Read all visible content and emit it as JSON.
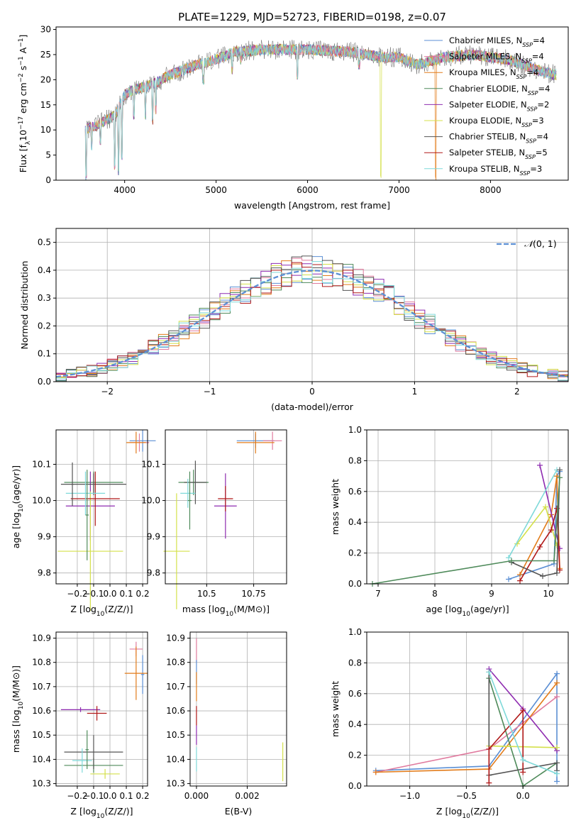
{
  "figure_title": "PLATE=1229, MJD=52723, FIBERID=0198, z=0.07",
  "models": [
    {
      "name": "Chabrier MILES, N_SSP=4",
      "label_main": "Chabrier MILES, N",
      "label_sub": "SSP",
      "label_end": "=4",
      "color": "#5b8fd4"
    },
    {
      "name": "Salpeter MILES, N_SSP=4",
      "label_main": "Salpeter MILES, N",
      "label_sub": "SSP",
      "label_end": "=4",
      "color": "#e07b9f"
    },
    {
      "name": "Kroupa MILES, N_SSP=4",
      "label_main": "Kroupa MILES, N",
      "label_sub": "SSP",
      "label_end": "=4",
      "color": "#e27c1b"
    },
    {
      "name": "Chabrier ELODIE, N_SSP=4",
      "label_main": "Chabrier ELODIE, N",
      "label_sub": "SSP",
      "label_end": "=4",
      "color": "#4e8a5a"
    },
    {
      "name": "Salpeter ELODIE, N_SSP=2",
      "label_main": "Salpeter ELODIE, N",
      "label_sub": "SSP",
      "label_end": "=2",
      "color": "#8e2bb0"
    },
    {
      "name": "Kroupa ELODIE, N_SSP=3",
      "label_main": "Kroupa ELODIE, N",
      "label_sub": "SSP",
      "label_end": "=3",
      "color": "#d4e04a"
    },
    {
      "name": "Chabrier STELIB, N_SSP=4",
      "label_main": "Chabrier STELIB, N",
      "label_sub": "SSP",
      "label_end": "=4",
      "color": "#555555"
    },
    {
      "name": "Salpeter STELIB, N_SSP=5",
      "label_main": "Salpeter STELIB, N",
      "label_sub": "SSP",
      "label_end": "=5",
      "color": "#b01818"
    },
    {
      "name": "Kroupa STELIB, N_SSP=3",
      "label_main": "Kroupa STELIB, N",
      "label_sub": "SSP",
      "label_end": "=3",
      "color": "#7fd9d9"
    }
  ],
  "chart_data": [
    {
      "id": "spectrum",
      "type": "line",
      "xlabel": "wavelength [Angstrom, rest frame]",
      "ylabel": "Flux [f_λ10^-17 erg cm^-2 s^-1 A^-1]",
      "xlim": [
        3250,
        8850
      ],
      "ylim": [
        0,
        30.5
      ],
      "xticks": [
        4000,
        5000,
        6000,
        7000,
        8000
      ],
      "yticks": [
        0,
        5,
        10,
        15,
        20,
        25,
        30
      ],
      "legend": "top-right",
      "grid": false,
      "continuum": [
        [
          3570,
          10
        ],
        [
          3700,
          11
        ],
        [
          3800,
          12
        ],
        [
          3900,
          13
        ],
        [
          4000,
          17
        ],
        [
          4100,
          18
        ],
        [
          4300,
          19
        ],
        [
          4500,
          21
        ],
        [
          4800,
          23
        ],
        [
          5000,
          24
        ],
        [
          5200,
          25.5
        ],
        [
          5500,
          26
        ],
        [
          6000,
          26
        ],
        [
          6500,
          25.5
        ],
        [
          6800,
          24.5
        ],
        [
          7000,
          24.5
        ],
        [
          7200,
          23
        ],
        [
          7500,
          24.5
        ],
        [
          7800,
          25
        ],
        [
          8200,
          24
        ],
        [
          8500,
          22
        ],
        [
          8700,
          21
        ]
      ],
      "dips": [
        [
          3580,
          0
        ],
        [
          3640,
          6
        ],
        [
          3735,
          7
        ],
        [
          3890,
          2
        ],
        [
          3934,
          1
        ],
        [
          3968,
          4
        ],
        [
          4102,
          12
        ],
        [
          4226,
          12
        ],
        [
          4305,
          11
        ],
        [
          4340,
          13
        ],
        [
          4861,
          19
        ],
        [
          5175,
          21
        ],
        [
          5270,
          23
        ],
        [
          5890,
          20
        ],
        [
          6563,
          22
        ],
        [
          6800,
          0
        ],
        [
          7400,
          0
        ]
      ]
    },
    {
      "id": "residuals",
      "type": "step",
      "xlabel": "(data-model)/error",
      "ylabel": "Normed distribution",
      "xlim": [
        -2.5,
        2.5
      ],
      "ylim": [
        0,
        0.55
      ],
      "xticks": [
        -2,
        -1,
        0,
        1,
        2
      ],
      "yticks": [
        0.0,
        0.1,
        0.2,
        0.3,
        0.4,
        0.5
      ],
      "legend": "top-right",
      "legend_entry": "N(0,1)",
      "legend_entry_prefix": "𝒩",
      "legend_entry_suffix": "(0, 1)",
      "grid": true,
      "bin_width": 0.1
    },
    {
      "id": "age_vs_Z",
      "type": "errorbar",
      "xlabel": "Z [log10(Z/Z⊙)]",
      "ylabel": "age [log10(age/yr)]",
      "xlim": [
        -0.33,
        0.23
      ],
      "ylim": [
        9.77,
        10.195
      ],
      "xticks": [
        -0.2,
        -0.1,
        0.0,
        0.1,
        0.2
      ],
      "yticks": [
        9.8,
        9.9,
        10.0,
        10.1
      ],
      "grid": true,
      "points": [
        {
          "model": 0,
          "x": 0.2,
          "xerr": 0.08,
          "y": 10.165,
          "yerr": 0.03
        },
        {
          "model": 1,
          "x": 0.18,
          "xerr": 0.06,
          "y": 10.16,
          "yerr": 0.025
        },
        {
          "model": 2,
          "x": 0.16,
          "xerr": 0.06,
          "y": 10.16,
          "yerr": 0.03
        },
        {
          "model": 3,
          "x": -0.1,
          "xerr": 0.18,
          "y": 10.05,
          "yerr": 0.03
        },
        {
          "model": 4,
          "x": -0.12,
          "xerr": 0.15,
          "y": 9.985,
          "yerr": 0.095
        },
        {
          "model": 5,
          "x": -0.12,
          "xerr": 0.2,
          "y": 9.86,
          "yerr": 0.165
        },
        {
          "model": 6,
          "x": -0.1,
          "xerr": 0.2,
          "y": 10.045,
          "yerr": 0.03
        },
        {
          "model": 7,
          "x": -0.09,
          "xerr": 0.15,
          "y": 10.005,
          "yerr": 0.075
        },
        {
          "model": 8,
          "x": -0.15,
          "xerr": 0.12,
          "y": 10.02,
          "yerr": 0.06
        },
        {
          "model": 3,
          "x": -0.14,
          "xerr": 0.01,
          "y": 9.96,
          "yerr": 0.125
        },
        {
          "model": 6,
          "x": -0.23,
          "xerr": 0.01,
          "y": 10.045,
          "yerr": 0.06
        }
      ]
    },
    {
      "id": "age_vs_mass",
      "type": "errorbar",
      "xlabel": "mass [log10(M/M⊙)]",
      "ylabel": "",
      "xlim": [
        10.28,
        10.925
      ],
      "ylim": [
        9.77,
        10.195
      ],
      "xticks": [
        10.5,
        10.75
      ],
      "yticks": [
        9.8,
        9.9,
        10.0,
        10.1
      ],
      "grid": true,
      "points": [
        {
          "model": 0,
          "x": 10.76,
          "xerr": 0.1,
          "y": 10.165,
          "yerr": 0.02
        },
        {
          "model": 1,
          "x": 10.85,
          "xerr": 0.05,
          "y": 10.165,
          "yerr": 0.025
        },
        {
          "model": 2,
          "x": 10.76,
          "xerr": 0.1,
          "y": 10.16,
          "yerr": 0.03
        },
        {
          "model": 3,
          "x": 10.43,
          "xerr": 0.08,
          "y": 10.05,
          "yerr": 0.035
        },
        {
          "model": 4,
          "x": 10.6,
          "xerr": 0.06,
          "y": 9.985,
          "yerr": 0.09
        },
        {
          "model": 5,
          "x": 10.34,
          "xerr": 0.07,
          "y": 9.86,
          "yerr": 0.16
        },
        {
          "model": 6,
          "x": 10.44,
          "xerr": 0.06,
          "y": 10.05,
          "yerr": 0.06
        },
        {
          "model": 7,
          "x": 10.6,
          "xerr": 0.04,
          "y": 10.005,
          "yerr": 0.035
        },
        {
          "model": 8,
          "x": 10.4,
          "xerr": 0.04,
          "y": 10.02,
          "yerr": 0.04
        },
        {
          "model": 3,
          "x": 10.41,
          "xerr": 0.01,
          "y": 10.0,
          "yerr": 0.08
        }
      ]
    },
    {
      "id": "mass_weight_vs_age",
      "type": "line",
      "xlabel": "age [log10(age/yr)]",
      "ylabel": "mass weight",
      "xlim": [
        6.8,
        10.35
      ],
      "ylim": [
        0,
        1.0
      ],
      "xticks": [
        7,
        8,
        9,
        10
      ],
      "yticks": [
        0.0,
        0.2,
        0.4,
        0.6,
        0.8,
        1.0
      ],
      "grid": true,
      "series": [
        {
          "model": 0,
          "x": [
            9.3,
            10.1,
            10.15,
            10.2
          ],
          "y": [
            0.03,
            0.13,
            0.7,
            0.73
          ]
        },
        {
          "model": 2,
          "x": [
            9.5,
            10.05,
            10.15,
            10.2
          ],
          "y": [
            0.06,
            0.45,
            0.7,
            0.1
          ]
        },
        {
          "model": 4,
          "x": [
            9.85,
            10.2
          ],
          "y": [
            0.77,
            0.23
          ]
        },
        {
          "model": 5,
          "x": [
            9.45,
            9.95,
            10.15
          ],
          "y": [
            0.26,
            0.5,
            0.25
          ]
        },
        {
          "model": 7,
          "x": [
            9.5,
            9.85,
            10.05,
            10.15,
            10.2
          ],
          "y": [
            0.02,
            0.24,
            0.35,
            0.49,
            0.09
          ]
        },
        {
          "model": 8,
          "x": [
            9.3,
            10.15
          ],
          "y": [
            0.17,
            0.74
          ]
        },
        {
          "model": 6,
          "x": [
            9.35,
            9.9,
            10.15,
            10.2
          ],
          "y": [
            0.14,
            0.05,
            0.07,
            0.74
          ]
        },
        {
          "model": 3,
          "x": [
            6.9,
            9.35,
            10.1,
            10.2
          ],
          "y": [
            0.0,
            0.15,
            0.15,
            0.69
          ]
        }
      ]
    },
    {
      "id": "mass_vs_Z",
      "type": "errorbar",
      "xlabel": "Z [log10(Z/Z⊙)]",
      "ylabel": "mass [log10(M/M⊙)]",
      "xlim": [
        -0.33,
        0.23
      ],
      "ylim": [
        10.29,
        10.925
      ],
      "xticks": [
        -0.2,
        -0.1,
        0.0,
        0.1,
        0.2
      ],
      "yticks": [
        10.3,
        10.4,
        10.5,
        10.6,
        10.7,
        10.8,
        10.9
      ],
      "grid": true,
      "points": [
        {
          "model": 0,
          "x": 0.2,
          "xerr": 0.01,
          "y": 10.75,
          "yerr": 0.08
        },
        {
          "model": 1,
          "x": 0.16,
          "xerr": 0.04,
          "y": 10.855,
          "yerr": 0.03
        },
        {
          "model": 2,
          "x": 0.16,
          "xerr": 0.07,
          "y": 10.755,
          "yerr": 0.11
        },
        {
          "model": 3,
          "x": -0.1,
          "xerr": 0.18,
          "y": 10.375,
          "yerr": 0.03
        },
        {
          "model": 4,
          "x": -0.18,
          "xerr": 0.12,
          "y": 10.605,
          "yerr": 0.01
        },
        {
          "model": 5,
          "x": -0.03,
          "xerr": 0.09,
          "y": 10.34,
          "yerr": 0.02
        },
        {
          "model": 6,
          "x": -0.1,
          "xerr": 0.18,
          "y": 10.43,
          "yerr": 0.07
        },
        {
          "model": 7,
          "x": -0.08,
          "xerr": 0.06,
          "y": 10.59,
          "yerr": 0.03
        },
        {
          "model": 8,
          "x": -0.17,
          "xerr": 0.06,
          "y": 10.395,
          "yerr": 0.05
        },
        {
          "model": 3,
          "x": -0.14,
          "xerr": 0.01,
          "y": 10.44,
          "yerr": 0.08
        }
      ]
    },
    {
      "id": "mass_vs_ebv",
      "type": "errorbar",
      "xlabel": "E(B-V)",
      "ylabel": "",
      "xlim": [
        -0.00025,
        0.00355
      ],
      "ylim": [
        10.29,
        10.925
      ],
      "xticks": [
        0.0,
        0.002
      ],
      "yticks": [
        10.3,
        10.4,
        10.5,
        10.6,
        10.7,
        10.8,
        10.9
      ],
      "grid": true,
      "points": [
        {
          "model": 1,
          "x": 0.0,
          "xerr": 0.0,
          "y": 10.85,
          "yerr": 0.05
        },
        {
          "model": 0,
          "x": 0.0,
          "xerr": 0.0,
          "y": 10.76,
          "yerr": 0.05
        },
        {
          "model": 2,
          "x": 0.0,
          "xerr": 0.0,
          "y": 10.7,
          "yerr": 0.06
        },
        {
          "model": 4,
          "x": 0.0,
          "xerr": 0.0,
          "y": 10.5,
          "yerr": 0.04
        },
        {
          "model": 7,
          "x": 0.0,
          "xerr": 0.0,
          "y": 10.58,
          "yerr": 0.04
        },
        {
          "model": 8,
          "x": 0.0,
          "xerr": 0.0,
          "y": 10.4,
          "yerr": 0.05
        },
        {
          "model": 5,
          "x": 0.0034,
          "xerr": 0.0,
          "y": 10.39,
          "yerr": 0.08
        }
      ]
    },
    {
      "id": "mass_weight_vs_Z",
      "type": "line",
      "xlabel": "Z [log10(Z/Z⊙)]",
      "ylabel": "mass weight",
      "xlim": [
        -1.38,
        0.4
      ],
      "ylim": [
        0,
        1.0
      ],
      "xticks": [
        -1.0,
        -0.5,
        0.0
      ],
      "yticks": [
        0.0,
        0.2,
        0.4,
        0.6,
        0.8,
        1.0
      ],
      "grid": true,
      "series": [
        {
          "model": 0,
          "x": [
            -1.3,
            -0.3,
            0.3,
            0.3
          ],
          "y": [
            0.1,
            0.13,
            0.73,
            0.03
          ]
        },
        {
          "model": 1,
          "x": [
            -1.3,
            -0.3,
            0.3
          ],
          "y": [
            0.09,
            0.24,
            0.58
          ]
        },
        {
          "model": 2,
          "x": [
            -1.3,
            -0.3,
            0.3
          ],
          "y": [
            0.09,
            0.11,
            0.67
          ]
        },
        {
          "model": 3,
          "x": [
            -0.3,
            0.0,
            0.3
          ],
          "y": [
            0.7,
            0.0,
            0.15
          ]
        },
        {
          "model": 4,
          "x": [
            -0.3,
            0.0,
            0.3
          ],
          "y": [
            0.76,
            0.5,
            0.23
          ]
        },
        {
          "model": 5,
          "x": [
            -0.3,
            0.3
          ],
          "y": [
            0.26,
            0.25
          ]
        },
        {
          "model": 6,
          "x": [
            -0.3,
            -0.3,
            0.3,
            0.3
          ],
          "y": [
            0.74,
            0.07,
            0.15,
            0.1
          ]
        },
        {
          "model": 7,
          "x": [
            -0.3,
            -0.3,
            0.0,
            0.0
          ],
          "y": [
            0.02,
            0.24,
            0.49,
            0.09
          ]
        },
        {
          "model": 8,
          "x": [
            -0.3,
            0.0,
            0.3
          ],
          "y": [
            0.74,
            0.17,
            0.08
          ]
        }
      ]
    }
  ]
}
